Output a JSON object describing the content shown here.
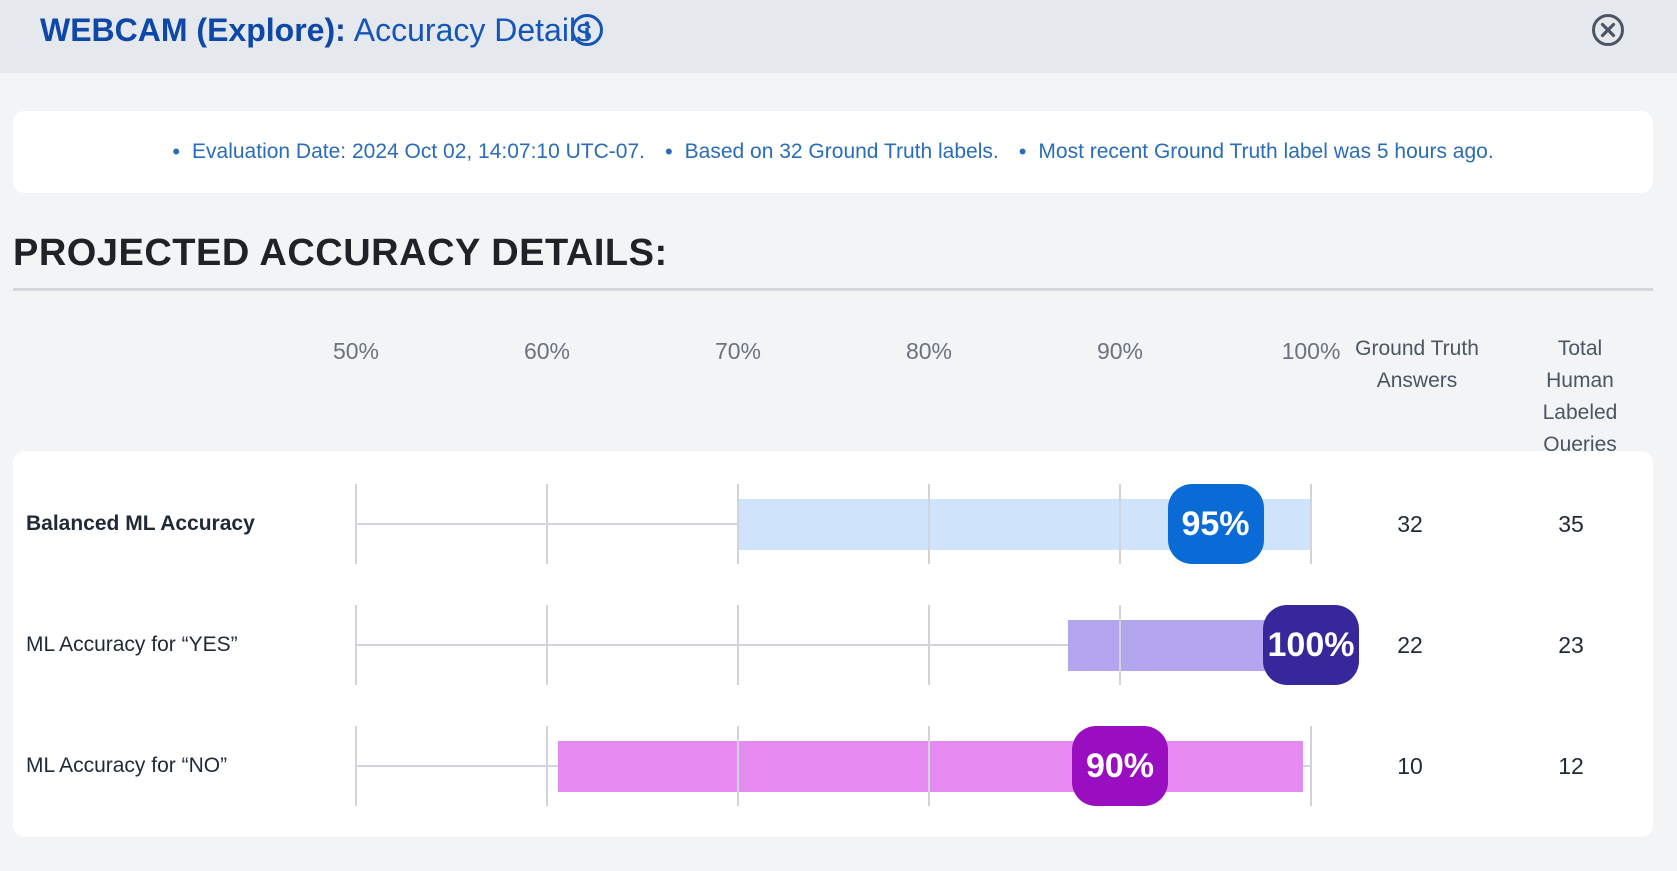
{
  "header": {
    "title_prefix": "WEBCAM (Explore):",
    "title_rest": "Accuracy Details"
  },
  "meta": {
    "items": [
      "Evaluation Date: 2024 Oct 02, 14:07:10 UTC-07.",
      "Based on 32 Ground Truth labels.",
      "Most recent Ground Truth label was 5 hours ago."
    ]
  },
  "section": {
    "title": "PROJECTED ACCURACY DETAILS:"
  },
  "columns": {
    "ground_truth": "Ground Truth\nAnswers",
    "total_labeled": "Total Human\nLabeled\nQueries"
  },
  "colors": {
    "header_bg": "#e5e8ec",
    "title_blue": "#0d47a8",
    "meta_text": "#2a6cb8"
  },
  "chart_data": {
    "type": "bar",
    "orientation": "horizontal",
    "x_range": [
      50,
      100
    ],
    "tick_labels": [
      "50%",
      "60%",
      "70%",
      "80%",
      "90%",
      "100%"
    ],
    "rows": [
      {
        "label": "Balanced ML Accuracy",
        "bold": true,
        "value": 95,
        "value_label": "95%",
        "interval": [
          70,
          100
        ],
        "bar_color": "#cfe4fb",
        "pill_color": "#0a6bd6",
        "ground_truth": "32",
        "total_labeled": "35"
      },
      {
        "label": "ML Accuracy for “YES”",
        "bold": false,
        "value": 100,
        "value_label": "100%",
        "interval": [
          87.3,
          100
        ],
        "bar_color": "#b3a6ef",
        "pill_color": "#36279b",
        "ground_truth": "22",
        "total_labeled": "23"
      },
      {
        "label": "ML Accuracy for “NO”",
        "bold": false,
        "value": 90,
        "value_label": "90%",
        "interval": [
          60.6,
          99.6
        ],
        "bar_color": "#e58af0",
        "pill_color": "#9a0ec2",
        "ground_truth": "10",
        "total_labeled": "12"
      }
    ]
  }
}
